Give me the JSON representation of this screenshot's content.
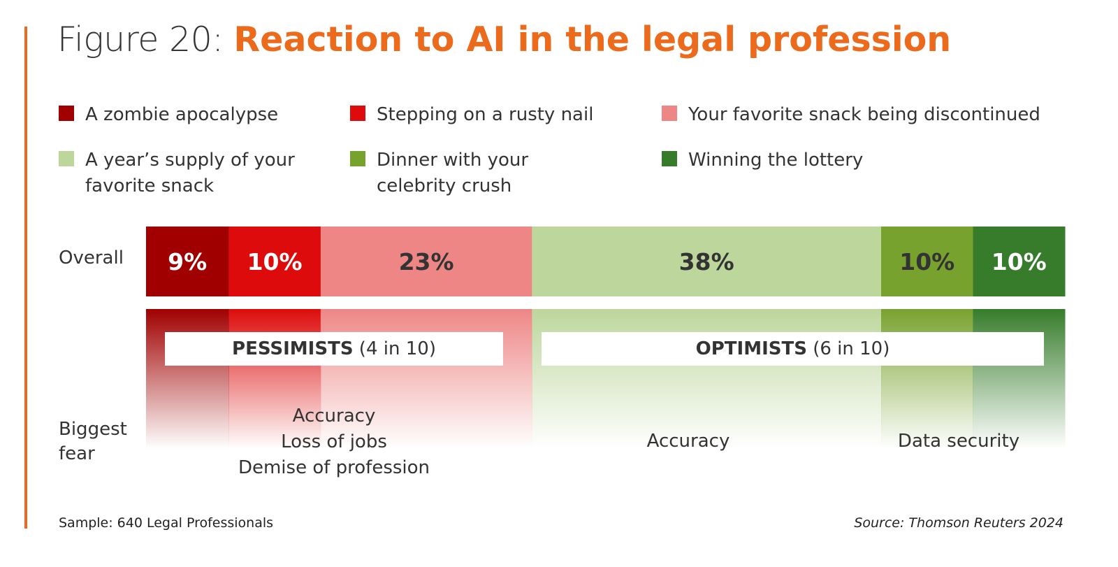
{
  "title": {
    "prefix": "Figure 20: ",
    "main": "Reaction to AI in the legal profession",
    "accent_color": "#ec6a1c"
  },
  "legend": [
    {
      "label": "A zombie apocalypse",
      "color": "#a00000"
    },
    {
      "label": "Stepping on a rusty nail",
      "color": "#dd0b0b"
    },
    {
      "label": "Your favorite snack being discontinued",
      "color": "#ee8686"
    },
    {
      "label": "A year’s supply of your\nfavorite snack",
      "color": "#bdd69c"
    },
    {
      "label": "Dinner with your\ncelebrity crush",
      "color": "#78a22e"
    },
    {
      "label": "Winning the lottery",
      "color": "#367c2b"
    }
  ],
  "row_labels": {
    "overall": "Overall",
    "biggest_fear": "Biggest\nfear"
  },
  "chart_data": {
    "type": "bar",
    "orientation": "horizontal",
    "stacked": true,
    "categories": [
      "Overall"
    ],
    "series": [
      {
        "name": "A zombie apocalypse",
        "values": [
          9
        ],
        "label": "9%",
        "color": "#a00000",
        "label_color": "#ffffff"
      },
      {
        "name": "Stepping on a rusty nail",
        "values": [
          10
        ],
        "label": "10%",
        "color": "#dd0b0b",
        "label_color": "#ffffff"
      },
      {
        "name": "Your favorite snack being discontinued",
        "values": [
          23
        ],
        "label": "23%",
        "color": "#ee8686",
        "label_color": "#333333"
      },
      {
        "name": "A year’s supply of your favorite snack",
        "values": [
          38
        ],
        "label": "38%",
        "color": "#bdd69c",
        "label_color": "#333333"
      },
      {
        "name": "Dinner with your celebrity crush",
        "values": [
          10
        ],
        "label": "10%",
        "color": "#78a22e",
        "label_color": "#333333"
      },
      {
        "name": "Winning the lottery",
        "values": [
          10
        ],
        "label": "10%",
        "color": "#367c2b",
        "label_color": "#ffffff"
      }
    ],
    "xlim": [
      0,
      100
    ],
    "unit": "%",
    "grid": false,
    "legend_position": "top"
  },
  "groups": [
    {
      "name": "PESSIMISTS",
      "detail": " (4 in 10)"
    },
    {
      "name": "OPTIMISTS",
      "detail": " (6 in 10)"
    }
  ],
  "fears": [
    "Accuracy\nLoss of jobs\nDemise of profession",
    "Accuracy",
    "Data security"
  ],
  "footer": {
    "sample": "Sample: 640 Legal Professionals",
    "source": "Source: Thomson Reuters 2024"
  }
}
